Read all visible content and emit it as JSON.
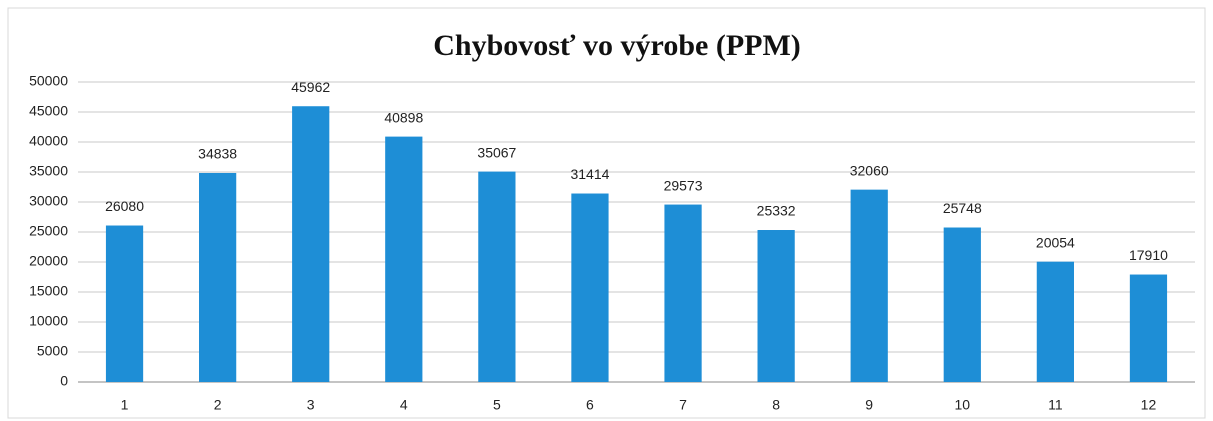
{
  "chart_data": {
    "type": "bar",
    "title": "Chybovosť vo výrobe (PPM)",
    "categories": [
      "1",
      "2",
      "3",
      "4",
      "5",
      "6",
      "7",
      "8",
      "9",
      "10",
      "11",
      "12"
    ],
    "values": [
      26080,
      34838,
      45962,
      40898,
      35067,
      31414,
      29573,
      25332,
      32060,
      25748,
      20054,
      17910
    ],
    "color": "#1e8ed6",
    "ylim": [
      0,
      50000
    ],
    "yticks": [
      0,
      5000,
      10000,
      15000,
      20000,
      25000,
      30000,
      35000,
      40000,
      45000,
      50000
    ],
    "grid": true
  }
}
